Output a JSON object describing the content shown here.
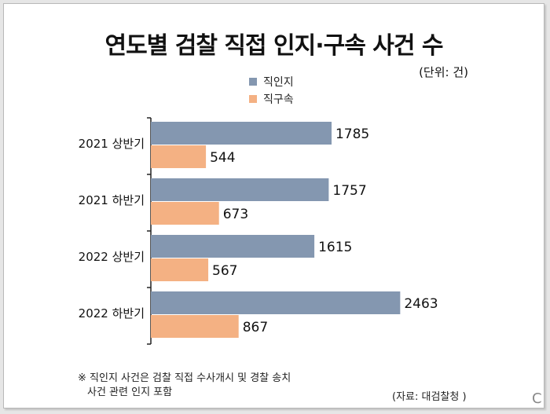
{
  "chart_data": {
    "type": "bar",
    "orientation": "horizontal",
    "title": "연도별 검찰 직접 인지·구속 사건 수",
    "unit": "(단위: 건)",
    "categories": [
      "2021 상반기",
      "2021 하반기",
      "2022 상반기",
      "2022 하반기"
    ],
    "series": [
      {
        "name": "직인지",
        "color": "#8497b0",
        "values": [
          1785,
          1757,
          1615,
          2463
        ]
      },
      {
        "name": "직구속",
        "color": "#f4b183",
        "values": [
          544,
          673,
          567,
          867
        ]
      }
    ],
    "xlim": [
      0,
      2600
    ],
    "legend": "top-center",
    "grid": false
  },
  "note": {
    "line1": "※ 직인지 사건은 검찰 직접 수사개시 및 경찰 송치",
    "line2": "사건 관련 인지 포함"
  },
  "source": "(자료: 대검찰청 )",
  "logo": "C"
}
